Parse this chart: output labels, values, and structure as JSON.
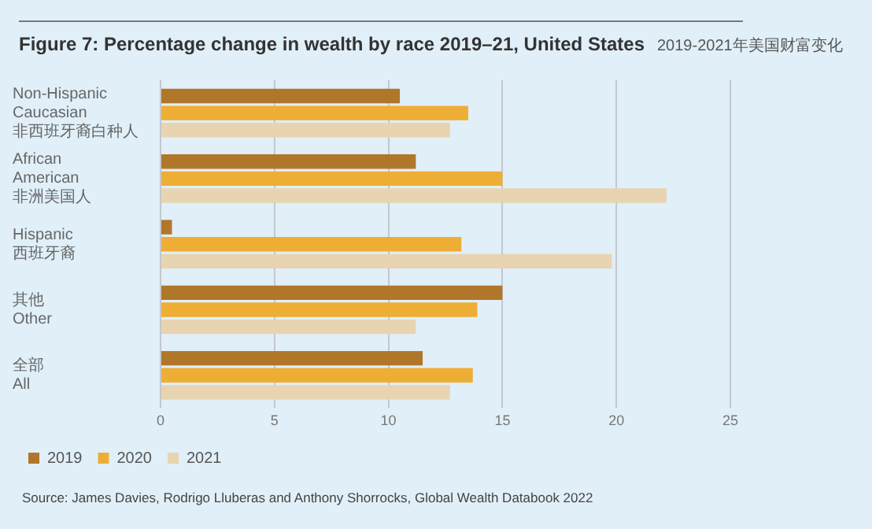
{
  "chart_data": {
    "type": "bar",
    "orientation": "horizontal",
    "title": "Figure 7: Percentage change in wealth by race 2019–21, United States",
    "subtitle": "2019-2021年美国财富变化",
    "categories": [
      "Non-Hispanic\nCaucasian\n非西班牙裔白种人",
      "African\nAmerican\n非洲美国人",
      "Hispanic\n西班牙裔",
      "其他\nOther",
      "全部\nAll"
    ],
    "series": [
      {
        "name": "2019",
        "color": "#b0772a",
        "values": [
          10.5,
          11.2,
          0.5,
          15.0,
          11.5
        ]
      },
      {
        "name": "2020",
        "color": "#eeae35",
        "values": [
          13.5,
          15.0,
          13.2,
          13.9,
          13.7
        ]
      },
      {
        "name": "2021",
        "color": "#e8d4b0",
        "values": [
          12.7,
          22.2,
          19.8,
          11.2,
          12.7
        ]
      }
    ],
    "xlim": [
      0,
      25
    ],
    "xticks": [
      0,
      5,
      10,
      15,
      20,
      25
    ],
    "grid": "x",
    "legend": "bottom left",
    "annotations": [
      "Source: James Davies, Rodrigo Lluberas and Anthony Shorrocks, Global Wealth Databook 2022"
    ]
  }
}
